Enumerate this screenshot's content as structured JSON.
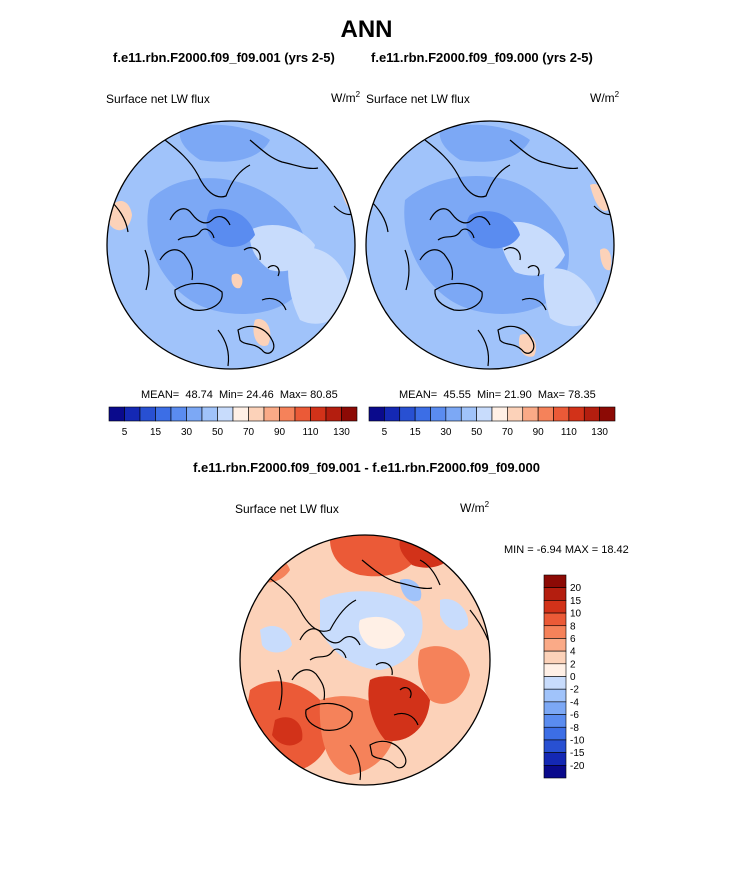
{
  "figure": {
    "title": "ANN",
    "left_case": "f.e11.rbn.F2000.f09_f09.001 (yrs 2-5)",
    "right_case": "f.e11.rbn.F2000.f09_f09.000 (yrs 2-5)",
    "diff_title": "f.e11.rbn.F2000.f09_f09.001 - f.e11.rbn.F2000.f09_f09.000"
  },
  "panels": [
    {
      "id": "case1",
      "variable": "Surface net LW flux",
      "unit_base": "W/m",
      "unit_exp": "2",
      "mean_label": "MEAN=",
      "mean": "48.74",
      "min_label": "Min=",
      "min": "24.46",
      "max_label": "Max=",
      "max": "80.85"
    },
    {
      "id": "case2",
      "variable": "Surface net LW flux",
      "unit_base": "W/m",
      "unit_exp": "2",
      "mean_label": "MEAN=",
      "mean": "45.55",
      "min_label": "Min=",
      "min": "21.90",
      "max_label": "Max=",
      "max": "78.35"
    },
    {
      "id": "diff",
      "variable": "Surface net LW flux",
      "unit_base": "W/m",
      "unit_exp": "2",
      "minmax_text": "MIN = -6.94 MAX = 18.42"
    }
  ],
  "chart_data": [
    {
      "type": "heatmap",
      "projection": "polar stereographic (north)",
      "title": "Surface net LW flux",
      "subtitle": "f.e11.rbn.F2000.f09_f09.001 (yrs 2-5)",
      "units": "W/m2",
      "stats": {
        "mean": 48.74,
        "min": 24.46,
        "max": 80.85
      },
      "colorbar": {
        "levels": [
          5,
          15,
          30,
          50,
          70,
          90,
          110,
          130
        ],
        "tick_labels": [
          "5",
          "15",
          "30",
          "50",
          "70",
          "90",
          "110",
          "130"
        ],
        "colors": [
          "#0a0a8c",
          "#1428b4",
          "#2850d2",
          "#3c6ee6",
          "#5a8cf0",
          "#7ca8f5",
          "#a0c3fa",
          "#c8dcfc",
          "#fff0e6",
          "#fcd2b9",
          "#faaa87",
          "#f5825a",
          "#eb5a37",
          "#d23219",
          "#b41e0f",
          "#8c0a05"
        ]
      }
    },
    {
      "type": "heatmap",
      "projection": "polar stereographic (north)",
      "title": "Surface net LW flux",
      "subtitle": "f.e11.rbn.F2000.f09_f09.000 (yrs 2-5)",
      "units": "W/m2",
      "stats": {
        "mean": 45.55,
        "min": 21.9,
        "max": 78.35
      },
      "colorbar": {
        "levels": [
          5,
          15,
          30,
          50,
          70,
          90,
          110,
          130
        ],
        "tick_labels": [
          "5",
          "15",
          "30",
          "50",
          "70",
          "90",
          "110",
          "130"
        ]
      }
    },
    {
      "type": "heatmap",
      "projection": "polar stereographic (north)",
      "title": "Surface net LW flux",
      "subtitle": "f.e11.rbn.F2000.f09_f09.001 - f.e11.rbn.F2000.f09_f09.000",
      "units": "W/m2",
      "stats": {
        "min": -6.94,
        "max": 18.42
      },
      "colorbar": {
        "levels": [
          20,
          15,
          10,
          8,
          6,
          4,
          2,
          0,
          -2,
          -4,
          -6,
          -8,
          -10,
          -15,
          -20
        ],
        "tick_labels": [
          "20",
          "15",
          "10",
          "8",
          "6",
          "4",
          "2",
          "0",
          "-2",
          "-4",
          "-6",
          "-8",
          "-10",
          "-15",
          "-20"
        ],
        "colors": [
          "#8c0a05",
          "#b41e0f",
          "#d23219",
          "#eb5a37",
          "#f5825a",
          "#faaa87",
          "#fcd2b9",
          "#fff0e6",
          "#c8dcfc",
          "#a0c3fa",
          "#7ca8f5",
          "#5a8cf0",
          "#3c6ee6",
          "#2850d2",
          "#1428b4",
          "#0a0a8c"
        ]
      }
    }
  ]
}
